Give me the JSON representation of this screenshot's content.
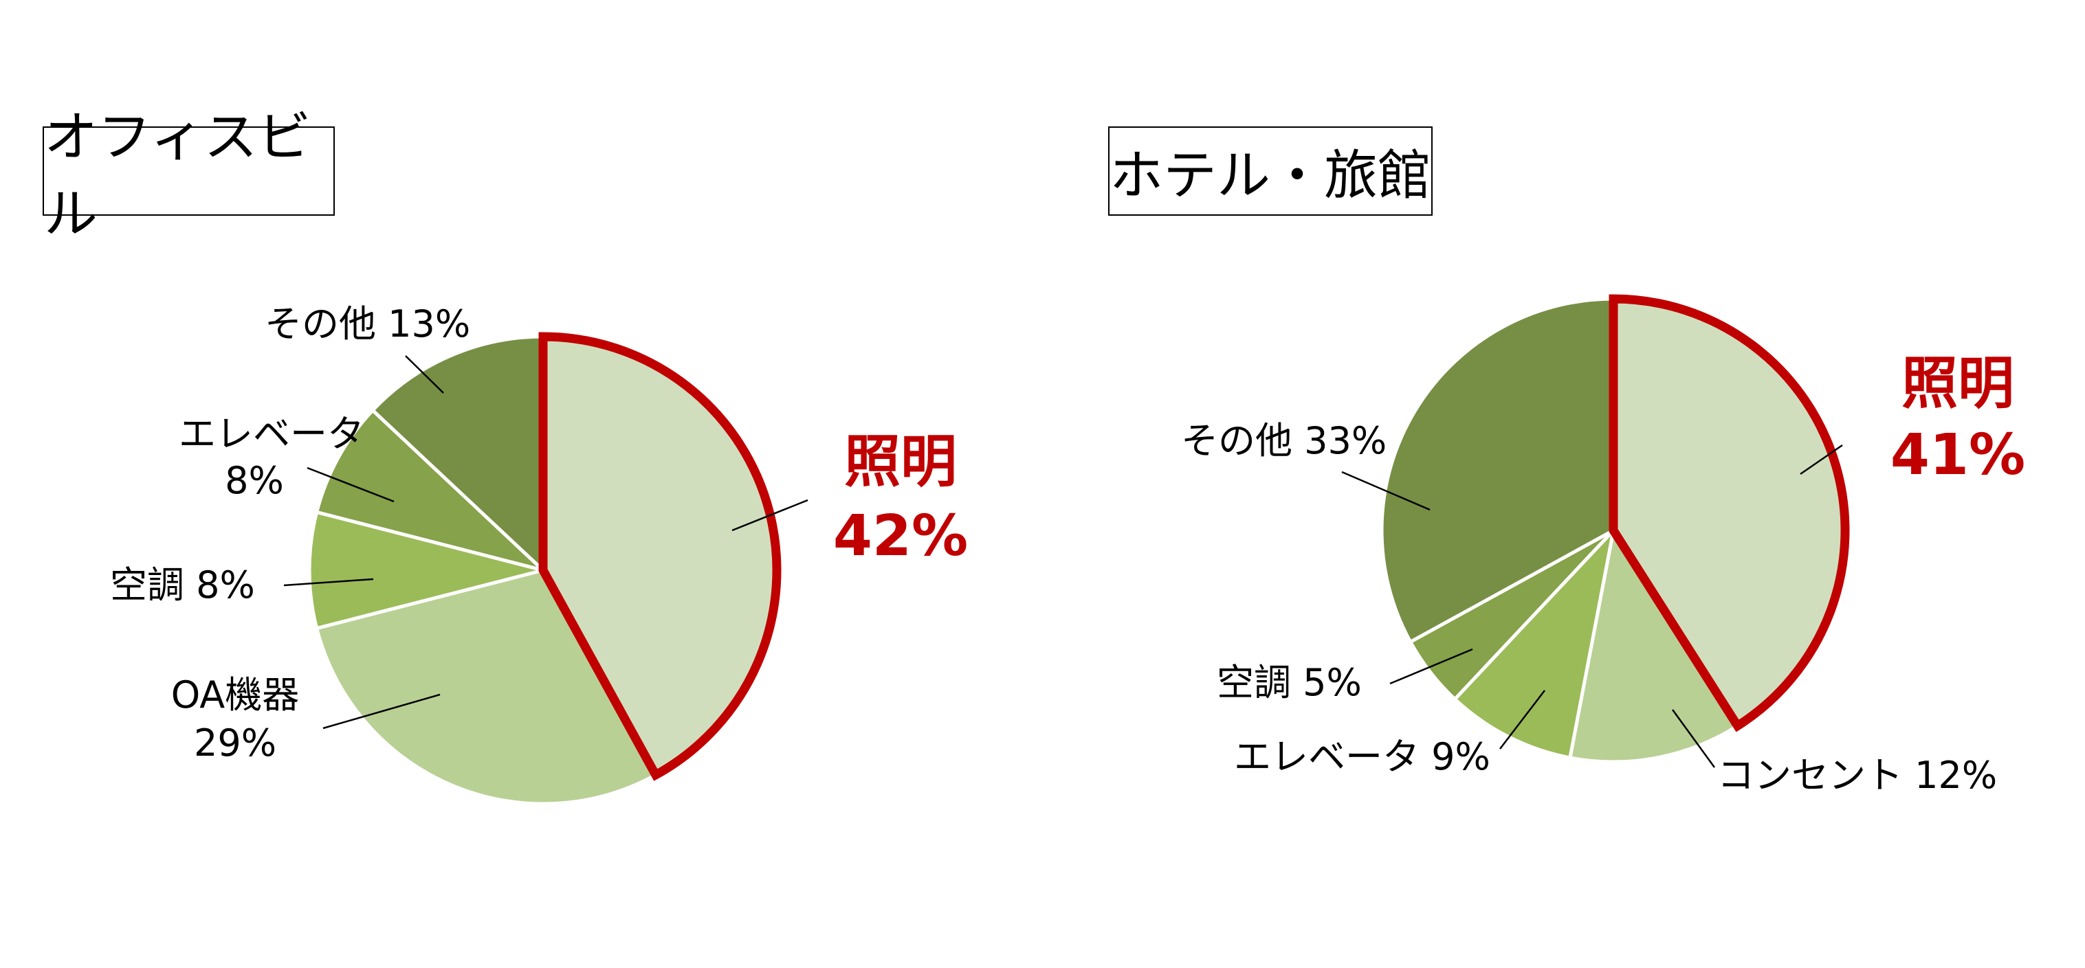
{
  "colors": {
    "highlight": "#C00000",
    "leader_line": "#000000",
    "slice_border": "#FFFFFF",
    "slices": {
      "light": "#D1DEBD",
      "pale": "#B9D095",
      "bright": "#9BBB59",
      "mid": "#86A24A",
      "dark": "#778F44"
    }
  },
  "chart_data": [
    {
      "type": "pie",
      "title": "オフィスビル",
      "start": "12 o'clock, clockwise",
      "highlighted": "照明",
      "slices": [
        {
          "label": "照明",
          "value_label": "42%",
          "value": 42,
          "color": "light"
        },
        {
          "label": "OA機器",
          "value_label": "29%",
          "value": 29,
          "color": "pale"
        },
        {
          "label": "空調",
          "value_label": "8%",
          "value": 8,
          "color": "bright"
        },
        {
          "label": "エレベータ",
          "value_label": "8%",
          "value": 8,
          "color": "mid"
        },
        {
          "label": "その他",
          "value_label": "13%",
          "value": 13,
          "color": "dark"
        }
      ]
    },
    {
      "type": "pie",
      "title": "ホテル・旅館",
      "start": "12 o'clock, clockwise",
      "highlighted": "照明",
      "slices": [
        {
          "label": "照明",
          "value_label": "41%",
          "value": 41,
          "color": "light"
        },
        {
          "label": "コンセント",
          "value_label": "12%",
          "value": 12,
          "color": "pale"
        },
        {
          "label": "エレベータ",
          "value_label": "9%",
          "value": 9,
          "color": "bright"
        },
        {
          "label": "空調",
          "value_label": "5%",
          "value": 5,
          "color": "mid"
        },
        {
          "label": "その他",
          "value_label": "33%",
          "value": 33,
          "color": "dark"
        }
      ]
    }
  ]
}
